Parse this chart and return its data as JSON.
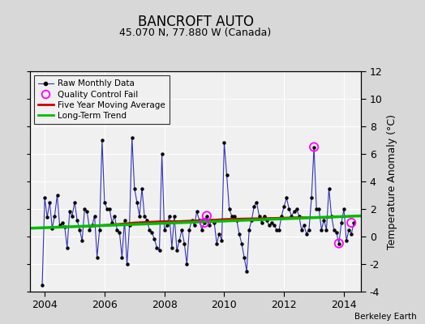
{
  "title": "BANCROFT AUTO",
  "subtitle": "45.070 N, 77.880 W (Canada)",
  "ylabel": "Temperature Anomaly (°C)",
  "credit": "Berkeley Earth",
  "xlim": [
    2003.5,
    2014.58
  ],
  "ylim": [
    -4,
    12
  ],
  "yticks": [
    -4,
    -2,
    0,
    2,
    4,
    6,
    8,
    10,
    12
  ],
  "xticks": [
    2004,
    2006,
    2008,
    2010,
    2012,
    2014
  ],
  "bg_color": "#d8d8d8",
  "plot_bg_color": "#f0f0f0",
  "raw_data_x": [
    2003.917,
    2004.0,
    2004.083,
    2004.167,
    2004.25,
    2004.333,
    2004.417,
    2004.5,
    2004.583,
    2004.667,
    2004.75,
    2004.833,
    2004.917,
    2005.0,
    2005.083,
    2005.167,
    2005.25,
    2005.333,
    2005.417,
    2005.5,
    2005.583,
    2005.667,
    2005.75,
    2005.833,
    2005.917,
    2006.0,
    2006.083,
    2006.167,
    2006.25,
    2006.333,
    2006.417,
    2006.5,
    2006.583,
    2006.667,
    2006.75,
    2006.833,
    2006.917,
    2007.0,
    2007.083,
    2007.167,
    2007.25,
    2007.333,
    2007.417,
    2007.5,
    2007.583,
    2007.667,
    2007.75,
    2007.833,
    2007.917,
    2008.0,
    2008.083,
    2008.167,
    2008.25,
    2008.333,
    2008.417,
    2008.5,
    2008.583,
    2008.667,
    2008.75,
    2008.833,
    2008.917,
    2009.0,
    2009.083,
    2009.167,
    2009.25,
    2009.333,
    2009.417,
    2009.5,
    2009.583,
    2009.667,
    2009.75,
    2009.833,
    2009.917,
    2010.0,
    2010.083,
    2010.167,
    2010.25,
    2010.333,
    2010.417,
    2010.5,
    2010.583,
    2010.667,
    2010.75,
    2010.833,
    2010.917,
    2011.0,
    2011.083,
    2011.167,
    2011.25,
    2011.333,
    2011.417,
    2011.5,
    2011.583,
    2011.667,
    2011.75,
    2011.833,
    2011.917,
    2012.0,
    2012.083,
    2012.167,
    2012.25,
    2012.333,
    2012.417,
    2012.5,
    2012.583,
    2012.667,
    2012.75,
    2012.833,
    2012.917,
    2013.0,
    2013.083,
    2013.167,
    2013.25,
    2013.333,
    2013.417,
    2013.5,
    2013.583,
    2013.667,
    2013.75,
    2013.833,
    2013.917,
    2014.0,
    2014.083,
    2014.167,
    2014.25,
    2014.333
  ],
  "raw_data_y": [
    -3.5,
    2.8,
    1.4,
    2.5,
    0.6,
    1.5,
    3.0,
    0.8,
    1.0,
    0.7,
    -0.8,
    1.8,
    1.5,
    2.5,
    1.2,
    0.5,
    -0.3,
    2.0,
    1.8,
    0.5,
    0.8,
    1.5,
    -1.5,
    0.5,
    7.0,
    2.5,
    2.0,
    2.0,
    1.0,
    1.5,
    0.5,
    0.3,
    -1.5,
    1.2,
    -2.0,
    0.8,
    7.2,
    3.5,
    2.5,
    1.5,
    3.5,
    1.5,
    1.2,
    0.5,
    0.3,
    -0.2,
    -0.8,
    -1.0,
    6.0,
    0.5,
    0.8,
    1.5,
    -0.8,
    1.5,
    -1.0,
    -0.3,
    0.5,
    -0.5,
    -2.0,
    0.5,
    1.2,
    0.8,
    1.8,
    1.2,
    0.5,
    1.0,
    1.5,
    0.8,
    1.2,
    1.0,
    -0.5,
    0.2,
    -0.3,
    6.8,
    4.5,
    2.0,
    1.5,
    1.5,
    1.2,
    0.2,
    -0.5,
    -1.5,
    -2.5,
    0.5,
    1.2,
    2.2,
    2.5,
    1.5,
    1.0,
    1.5,
    1.2,
    0.8,
    1.0,
    0.8,
    0.5,
    0.5,
    1.5,
    2.2,
    2.8,
    2.0,
    1.5,
    1.8,
    2.0,
    1.5,
    0.5,
    0.8,
    0.2,
    0.5,
    2.8,
    6.5,
    2.0,
    2.0,
    0.5,
    1.2,
    0.5,
    3.5,
    1.5,
    0.5,
    0.3,
    -0.5,
    1.0,
    2.0,
    -0.3,
    0.5,
    0.2,
    1.0
  ],
  "qc_fail_x": [
    2009.333,
    2009.417,
    2013.0,
    2013.833,
    2014.25
  ],
  "qc_fail_y": [
    1.0,
    1.5,
    6.5,
    -0.5,
    1.0
  ],
  "moving_avg_x": [
    2005.5,
    2006.0,
    2006.5,
    2007.0,
    2007.5,
    2008.0,
    2008.5,
    2009.0,
    2009.5,
    2010.0,
    2010.5,
    2011.0,
    2011.5,
    2012.0,
    2012.5,
    2013.0,
    2013.5
  ],
  "moving_avg_y": [
    0.75,
    0.82,
    0.9,
    1.0,
    1.05,
    1.1,
    1.1,
    1.15,
    1.18,
    1.25,
    1.28,
    1.3,
    1.32,
    1.35,
    1.38,
    1.38,
    1.38
  ],
  "trend_x": [
    2003.5,
    2014.58
  ],
  "trend_y": [
    0.6,
    1.5
  ],
  "raw_color": "#3333bb",
  "moving_avg_color": "#cc0000",
  "trend_color": "#00bb00",
  "qc_color": "magenta"
}
